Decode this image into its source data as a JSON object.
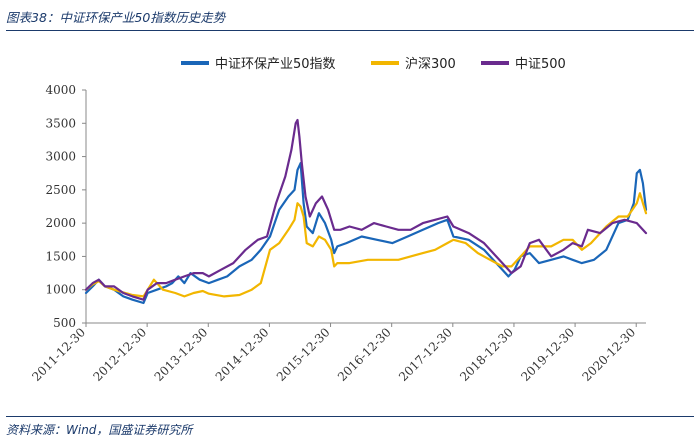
{
  "caption": "图表38：中证环保产业50指数历史走势",
  "source": "资料来源：Wind，国盛证券研究所",
  "chart_data": {
    "type": "line",
    "title": "",
    "xlabel": "",
    "ylabel": "",
    "ylim": [
      500,
      4000
    ],
    "yticks": [
      500,
      1000,
      1500,
      2000,
      2500,
      3000,
      3500,
      4000
    ],
    "xticks": [
      "2011-12-30",
      "2012-12-30",
      "2013-12-30",
      "2014-12-30",
      "2015-12-30",
      "2016-12-30",
      "2017-12-30",
      "2018-12-30",
      "2019-12-30",
      "2020-12-30"
    ],
    "xlim": [
      2011.99,
      2021.15
    ],
    "legend_position": "top",
    "series": [
      {
        "name": "中证环保产业50指数",
        "color": "#1a66b8",
        "x": [
          2011.99,
          2012.1,
          2012.2,
          2012.3,
          2012.45,
          2012.6,
          2012.75,
          2012.93,
          2013.0,
          2013.15,
          2013.3,
          2013.4,
          2013.5,
          2013.6,
          2013.7,
          2013.85,
          2014.0,
          2014.15,
          2014.3,
          2014.5,
          2014.7,
          2014.85,
          2015.0,
          2015.15,
          2015.3,
          2015.4,
          2015.45,
          2015.5,
          2015.55,
          2015.6,
          2015.7,
          2015.8,
          2015.9,
          2016.0,
          2016.05,
          2016.1,
          2016.25,
          2016.5,
          2016.75,
          2017.0,
          2017.25,
          2017.5,
          2017.75,
          2017.9,
          2018.0,
          2018.25,
          2018.5,
          2018.75,
          2018.9,
          2019.0,
          2019.1,
          2019.25,
          2019.4,
          2019.6,
          2019.8,
          2019.95,
          2020.1,
          2020.3,
          2020.5,
          2020.7,
          2020.85,
          2020.95,
          2021.0,
          2021.05,
          2021.1,
          2021.15
        ],
        "values": [
          950,
          1050,
          1150,
          1050,
          1000,
          900,
          850,
          800,
          950,
          1000,
          1050,
          1100,
          1200,
          1100,
          1250,
          1150,
          1100,
          1150,
          1200,
          1350,
          1450,
          1600,
          1800,
          2200,
          2400,
          2500,
          2800,
          2900,
          2300,
          1950,
          1850,
          2150,
          2000,
          1750,
          1550,
          1650,
          1700,
          1800,
          1750,
          1700,
          1800,
          1900,
          2000,
          2050,
          1800,
          1750,
          1600,
          1350,
          1200,
          1300,
          1500,
          1550,
          1400,
          1450,
          1500,
          1450,
          1400,
          1450,
          1600,
          2000,
          2050,
          2300,
          2750,
          2800,
          2600,
          2200
        ]
      },
      {
        "name": "沪深300",
        "color": "#f2b600",
        "x": [
          2011.99,
          2012.1,
          2012.2,
          2012.3,
          2012.45,
          2012.6,
          2012.75,
          2012.93,
          2013.0,
          2013.1,
          2013.25,
          2013.45,
          2013.6,
          2013.75,
          2013.9,
          2014.0,
          2014.25,
          2014.5,
          2014.7,
          2014.85,
          2015.0,
          2015.15,
          2015.3,
          2015.4,
          2015.45,
          2015.5,
          2015.55,
          2015.6,
          2015.7,
          2015.8,
          2015.9,
          2016.0,
          2016.05,
          2016.1,
          2016.3,
          2016.6,
          2016.9,
          2017.1,
          2017.3,
          2017.5,
          2017.7,
          2017.9,
          2018.0,
          2018.2,
          2018.4,
          2018.6,
          2018.8,
          2018.95,
          2019.1,
          2019.25,
          2019.4,
          2019.6,
          2019.8,
          2019.95,
          2020.1,
          2020.25,
          2020.5,
          2020.7,
          2020.85,
          2021.0,
          2021.05,
          2021.1,
          2021.15
        ],
        "values": [
          1000,
          1080,
          1130,
          1050,
          1000,
          960,
          920,
          900,
          1000,
          1150,
          1000,
          950,
          900,
          950,
          980,
          940,
          900,
          920,
          1000,
          1100,
          1600,
          1700,
          1900,
          2050,
          2300,
          2250,
          2100,
          1700,
          1650,
          1800,
          1750,
          1600,
          1350,
          1400,
          1400,
          1450,
          1450,
          1450,
          1500,
          1550,
          1600,
          1700,
          1750,
          1700,
          1550,
          1450,
          1350,
          1350,
          1500,
          1650,
          1650,
          1650,
          1750,
          1750,
          1600,
          1700,
          1950,
          2100,
          2100,
          2300,
          2450,
          2300,
          2150
        ]
      },
      {
        "name": "中证500",
        "color": "#6a2b8e",
        "x": [
          2011.99,
          2012.1,
          2012.2,
          2012.3,
          2012.45,
          2012.6,
          2012.75,
          2012.93,
          2013.0,
          2013.15,
          2013.3,
          2013.45,
          2013.6,
          2013.75,
          2013.9,
          2014.0,
          2014.2,
          2014.4,
          2014.6,
          2014.8,
          2014.95,
          2015.1,
          2015.25,
          2015.35,
          2015.42,
          2015.45,
          2015.48,
          2015.52,
          2015.58,
          2015.65,
          2015.75,
          2015.85,
          2015.95,
          2016.05,
          2016.15,
          2016.3,
          2016.5,
          2016.7,
          2016.9,
          2017.1,
          2017.3,
          2017.5,
          2017.7,
          2017.9,
          2018.0,
          2018.25,
          2018.5,
          2018.75,
          2018.95,
          2019.1,
          2019.25,
          2019.4,
          2019.6,
          2019.8,
          2019.95,
          2020.1,
          2020.2,
          2020.4,
          2020.6,
          2020.8,
          2021.0,
          2021.1,
          2021.15
        ],
        "values": [
          1000,
          1100,
          1150,
          1050,
          1050,
          950,
          900,
          850,
          1000,
          1100,
          1100,
          1150,
          1200,
          1250,
          1250,
          1200,
          1300,
          1400,
          1600,
          1750,
          1800,
          2300,
          2700,
          3100,
          3500,
          3550,
          3300,
          2900,
          2400,
          2100,
          2300,
          2400,
          2200,
          1900,
          1900,
          1950,
          1900,
          2000,
          1950,
          1900,
          1900,
          2000,
          2050,
          2100,
          1950,
          1850,
          1700,
          1450,
          1250,
          1350,
          1700,
          1750,
          1500,
          1600,
          1700,
          1650,
          1900,
          1850,
          2000,
          2050,
          2000,
          1900,
          1850
        ]
      }
    ]
  }
}
